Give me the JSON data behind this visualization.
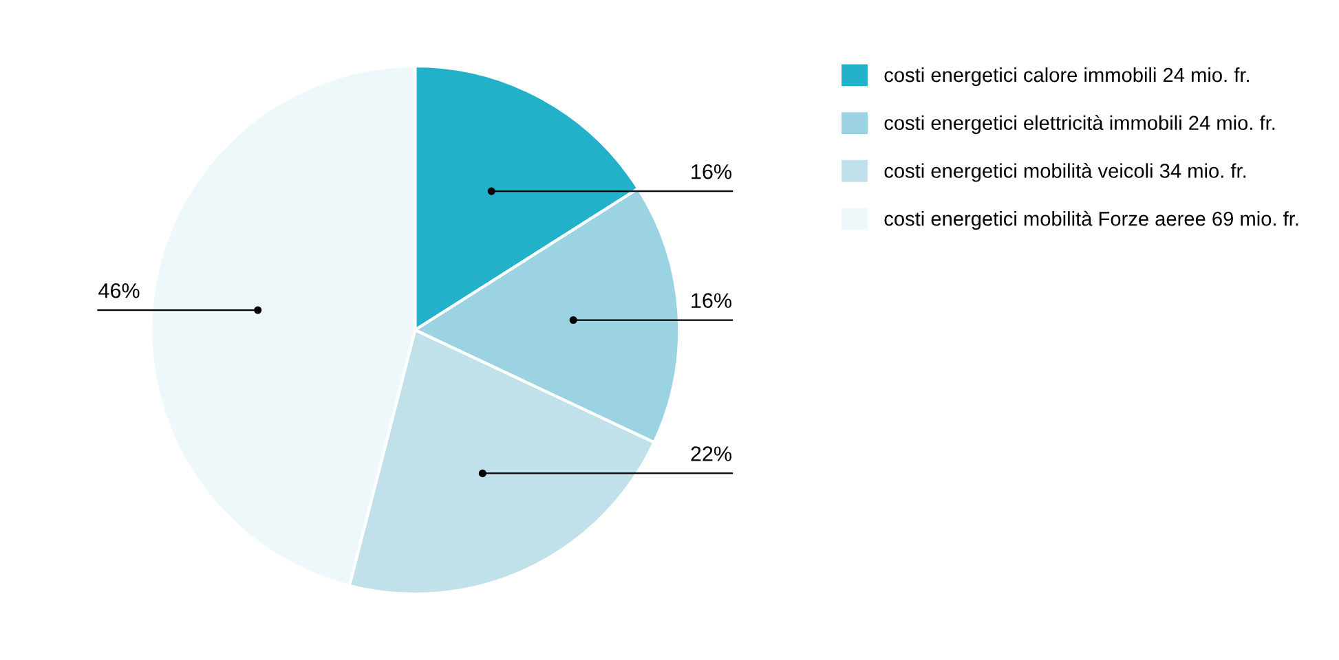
{
  "chart_data": {
    "type": "pie",
    "categories": [
      "costi energetici calore immobili 24 mio. fr.",
      "costi energetici elettricità immobili 24 mio. fr.",
      "costi energetici mobilità veicoli 34 mio. fr.",
      "costi energetici mobilità Forze aeree 69 mio. fr."
    ],
    "values": [
      16,
      16,
      22,
      46
    ],
    "value_labels": [
      "16%",
      "16%",
      "22%",
      "46%"
    ],
    "colors": [
      "#23b0c9",
      "#9bd3e2",
      "#c0e1ea",
      "#eef7f9"
    ],
    "legend": "top right"
  }
}
